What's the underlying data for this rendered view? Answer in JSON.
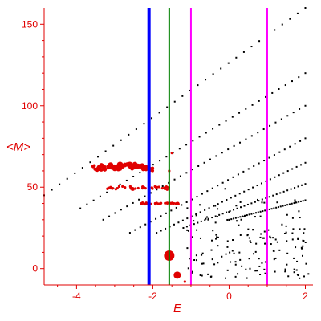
{
  "chart_data": {
    "type": "scatter",
    "title": "",
    "xlabel": "E",
    "ylabel": "<M>",
    "xlim": [
      -4.85,
      2.2
    ],
    "ylim": [
      -10,
      160
    ],
    "xticks": [
      -4,
      -2,
      0,
      2
    ],
    "yticks": [
      0,
      50,
      100,
      150
    ],
    "colors": {
      "axis": "#e00000",
      "text": "#e00000",
      "points": "#000000",
      "highlight": "#e00000"
    },
    "vlines": [
      {
        "x": -2.1,
        "color": "#0000ff",
        "weight": "thick"
      },
      {
        "x": -1.57,
        "color": "#008000",
        "weight": "thin"
      },
      {
        "x": -1.0,
        "color": "#ff00ff",
        "weight": "thin"
      },
      {
        "x": 1.0,
        "color": "#ff00ff",
        "weight": "thin"
      }
    ],
    "bands": [
      {
        "x0": -4.85,
        "y0": 45,
        "x1": 2.0,
        "y1": 160
      },
      {
        "x0": -3.9,
        "y0": 37,
        "x1": 2.0,
        "y1": 120
      },
      {
        "x0": -3.3,
        "y0": 30,
        "x1": 2.0,
        "y1": 100
      },
      {
        "x0": -2.6,
        "y0": 22,
        "x1": 2.0,
        "y1": 80
      },
      {
        "x0": -1.9,
        "y0": 22,
        "x1": 2.0,
        "y1": 65
      },
      {
        "x0": -1.2,
        "y0": 25,
        "x1": 2.0,
        "y1": 52
      },
      {
        "x0": 0.0,
        "y0": 30,
        "x1": 2.0,
        "y1": 42
      }
    ],
    "highlight_clusters": [
      {
        "x0": -3.6,
        "x1": -2.0,
        "cy": 61.5,
        "spread": 1.5,
        "size": "large"
      },
      {
        "x0": -3.2,
        "x1": -1.5,
        "cy": 49.5,
        "spread": 1.0,
        "size": "small"
      },
      {
        "x0": -2.3,
        "x1": -1.3,
        "cy": 40.0,
        "spread": 0.5,
        "size": "small"
      }
    ],
    "highlight_points": [
      {
        "x": -1.57,
        "y": 8,
        "size": "large"
      },
      {
        "x": -1.36,
        "y": -4,
        "size": "medium"
      },
      {
        "x": -1.57,
        "y": 60,
        "size": "small"
      },
      {
        "x": -1.5,
        "y": 71,
        "size": "small"
      },
      {
        "x": -1.16,
        "y": -8,
        "size": "small"
      }
    ]
  }
}
